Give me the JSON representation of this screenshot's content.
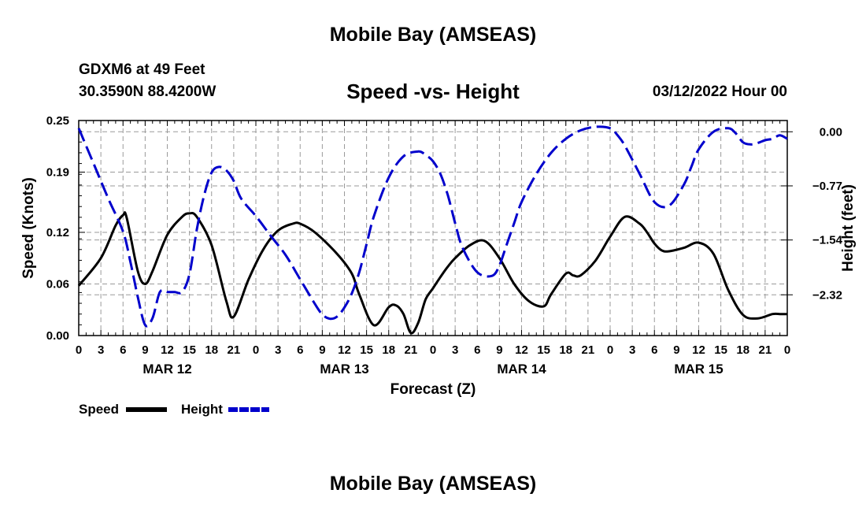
{
  "page": {
    "main_title": "Mobile Bay (AMSEAS)",
    "bottom_title": "Mobile Bay (AMSEAS)",
    "station": "GDXM6 at 49 Feet",
    "coords": "30.3590N   88.4200W",
    "subtitle": "Speed -vs- Height",
    "datetime": "03/12/2022 Hour 00"
  },
  "chart_data": {
    "type": "line",
    "title": "Speed -vs- Height",
    "xlabel": "Forecast (Z)",
    "ylabel": "Speed (Knots)",
    "y2label": "Height (feet)",
    "x_range": [
      0,
      96
    ],
    "ylim": [
      0,
      0.25
    ],
    "y2lim": [
      -2.9,
      0.16
    ],
    "y_ticks": [
      0.0,
      0.06,
      0.12,
      0.19,
      0.25
    ],
    "y_tick_labels": [
      "0.00",
      "0.06",
      "0.12",
      "0.19",
      "0.25"
    ],
    "y2_ticks": [
      0.0,
      -0.77,
      -1.54,
      -2.32
    ],
    "y2_tick_labels": [
      "0.00",
      "−0.77",
      "−1.54",
      "−2.32"
    ],
    "x_ticks": [
      0,
      3,
      6,
      9,
      12,
      15,
      18,
      21,
      24,
      27,
      30,
      33,
      36,
      39,
      42,
      45,
      48,
      51,
      54,
      57,
      60,
      63,
      66,
      69,
      72,
      75,
      78,
      81,
      84,
      87,
      90,
      93,
      96
    ],
    "x_tick_labels": [
      "0",
      "3",
      "6",
      "9",
      "12",
      "15",
      "18",
      "21",
      "0",
      "3",
      "6",
      "9",
      "12",
      "15",
      "18",
      "21",
      "0",
      "3",
      "6",
      "9",
      "12",
      "15",
      "18",
      "21",
      "0",
      "3",
      "6",
      "9",
      "12",
      "15",
      "18",
      "21",
      "0"
    ],
    "date_labels": [
      {
        "label": "MAR 12",
        "x": 12
      },
      {
        "label": "MAR 13",
        "x": 36
      },
      {
        "label": "MAR 14",
        "x": 60
      },
      {
        "label": "MAR 15",
        "x": 84
      }
    ],
    "legend": [
      {
        "name": "Speed",
        "color": "#000000",
        "dash": "solid"
      },
      {
        "name": "Height",
        "color": "#0000cc",
        "dash": "dashed"
      }
    ],
    "series": [
      {
        "name": "Speed",
        "axis": "left",
        "color": "#000000",
        "x": [
          0,
          3,
          5,
          6,
          6.5,
          8,
          9,
          10,
          12,
          14,
          15,
          16,
          18,
          20,
          21,
          23,
          25,
          27,
          29,
          30,
          32,
          35,
          37,
          38,
          40,
          42,
          43,
          44,
          45,
          46,
          47,
          48,
          49,
          50,
          51,
          53,
          55,
          57,
          59,
          61,
          63,
          64,
          66,
          67,
          68,
          70,
          72,
          74,
          76,
          77,
          78,
          79,
          80,
          82,
          84,
          86,
          88,
          90,
          92,
          94,
          95,
          96
        ],
        "values": [
          0.058,
          0.09,
          0.128,
          0.14,
          0.137,
          0.075,
          0.06,
          0.075,
          0.117,
          0.138,
          0.142,
          0.138,
          0.105,
          0.04,
          0.022,
          0.065,
          0.1,
          0.122,
          0.13,
          0.13,
          0.12,
          0.095,
          0.072,
          0.048,
          0.012,
          0.033,
          0.035,
          0.025,
          0.003,
          0.015,
          0.042,
          0.055,
          0.068,
          0.08,
          0.09,
          0.105,
          0.11,
          0.09,
          0.06,
          0.04,
          0.034,
          0.048,
          0.072,
          0.07,
          0.07,
          0.087,
          0.115,
          0.138,
          0.13,
          0.12,
          0.107,
          0.099,
          0.098,
          0.102,
          0.108,
          0.095,
          0.053,
          0.024,
          0.02,
          0.025,
          0.025,
          0.025
        ]
      },
      {
        "name": "Height",
        "axis": "right",
        "color": "#0000cc",
        "x": [
          0,
          2,
          4,
          6,
          7,
          8,
          9,
          10,
          11,
          12,
          13,
          14,
          15,
          16,
          17,
          18,
          19,
          20,
          21,
          22,
          24,
          26,
          28,
          30,
          32,
          33,
          34,
          35,
          36,
          37,
          38,
          39,
          40,
          42,
          44,
          46,
          47,
          48,
          49,
          50,
          51,
          52,
          54,
          56,
          57,
          58,
          59,
          60,
          62,
          64,
          66,
          68,
          70,
          72,
          73,
          74,
          76,
          78,
          80,
          82,
          83,
          84,
          86,
          88,
          89,
          90,
          91,
          92,
          93,
          94,
          95,
          96
        ],
        "values": [
          0.05,
          -0.45,
          -0.95,
          -1.42,
          -1.85,
          -2.35,
          -2.75,
          -2.65,
          -2.28,
          -2.28,
          -2.28,
          -2.28,
          -2.03,
          -1.39,
          -0.9,
          -0.58,
          -0.5,
          -0.55,
          -0.7,
          -0.95,
          -1.2,
          -1.48,
          -1.75,
          -2.1,
          -2.45,
          -2.6,
          -2.66,
          -2.63,
          -2.5,
          -2.3,
          -2.0,
          -1.6,
          -1.2,
          -0.65,
          -0.35,
          -0.28,
          -0.33,
          -0.42,
          -0.6,
          -0.9,
          -1.3,
          -1.65,
          -2.0,
          -2.05,
          -1.9,
          -1.6,
          -1.3,
          -1.0,
          -0.6,
          -0.3,
          -0.1,
          0.02,
          0.07,
          0.05,
          -0.05,
          -0.2,
          -0.6,
          -1.0,
          -1.05,
          -0.75,
          -0.5,
          -0.25,
          0.0,
          0.05,
          -0.02,
          -0.15,
          -0.18,
          -0.16,
          -0.12,
          -0.1,
          -0.05,
          -0.1
        ]
      }
    ]
  }
}
